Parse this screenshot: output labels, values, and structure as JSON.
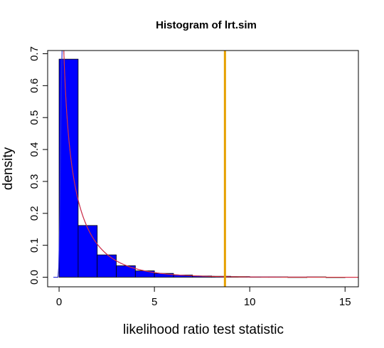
{
  "chart_data": {
    "type": "bar",
    "title": "Histogram of lrt.sim",
    "xlabel": "likelihood ratio test statistic",
    "ylabel": "density",
    "xlim": [
      -0.6,
      15.7
    ],
    "ylim": [
      -0.03,
      0.71
    ],
    "x_ticks": [
      0,
      5,
      10,
      15
    ],
    "y_ticks": [
      0.0,
      0.1,
      0.2,
      0.3,
      0.4,
      0.5,
      0.6,
      0.7
    ],
    "bins": [
      {
        "x0": 0,
        "x1": 1,
        "density": 0.683
      },
      {
        "x0": 1,
        "x1": 2,
        "density": 0.162
      },
      {
        "x0": 2,
        "x1": 3,
        "density": 0.07
      },
      {
        "x0": 3,
        "x1": 4,
        "density": 0.036
      },
      {
        "x0": 4,
        "x1": 5,
        "density": 0.02
      },
      {
        "x0": 5,
        "x1": 6,
        "density": 0.012
      },
      {
        "x0": 6,
        "x1": 7,
        "density": 0.007
      },
      {
        "x0": 7,
        "x1": 8,
        "density": 0.004
      },
      {
        "x0": 8,
        "x1": 9,
        "density": 0.003
      },
      {
        "x0": 9,
        "x1": 10,
        "density": 0.002
      },
      {
        "x0": 10,
        "x1": 11,
        "density": 0.001
      },
      {
        "x0": 11,
        "x1": 12,
        "density": 0.001
      },
      {
        "x0": 12,
        "x1": 13,
        "density": 0.0005
      },
      {
        "x0": 13,
        "x1": 14,
        "density": 0.001
      },
      {
        "x0": 14,
        "x1": 15,
        "density": 0.0003
      }
    ],
    "reference_line": {
      "x": 8.7,
      "color": "#e6a000"
    },
    "curves": [
      {
        "kind": "density-estimate",
        "color": "#2b2bd6"
      },
      {
        "kind": "chi-square-df1",
        "color": "#e0303a"
      }
    ],
    "bar_color": "#0000ff",
    "grid": false
  }
}
